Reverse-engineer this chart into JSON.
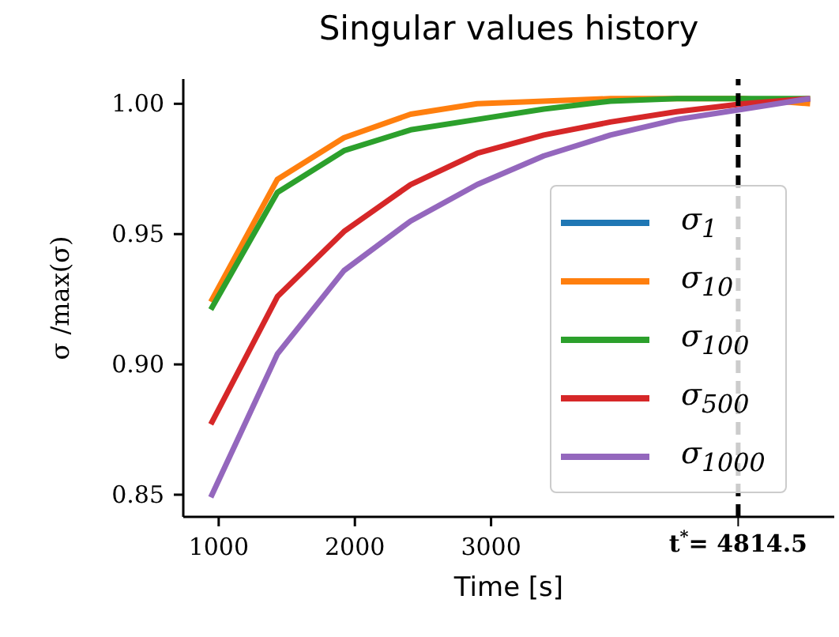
{
  "chart_data": {
    "type": "line",
    "title": "Singular values history",
    "xlabel": "Time [s]",
    "ylabel": "σ /max(σ)",
    "x": [
      942,
      1431,
      1920,
      2409,
      2898,
      3387,
      3876,
      4365,
      4854,
      5343
    ],
    "series": [
      {
        "name": "σ$_{1}$",
        "color": "#1f77b4",
        "values": [
          null,
          null,
          null,
          null,
          null,
          null,
          null,
          null,
          null,
          null
        ]
      },
      {
        "name": "σ$_{10}$",
        "color": "#ff7f0e",
        "values": [
          0.924,
          0.971,
          0.987,
          0.996,
          1.0,
          1.001,
          1.002,
          1.002,
          1.002,
          1.0
        ]
      },
      {
        "name": "σ$_{100}$",
        "color": "#2ca02c",
        "values": [
          0.921,
          0.966,
          0.982,
          0.99,
          0.994,
          0.998,
          1.001,
          1.002,
          1.002,
          1.002
        ]
      },
      {
        "name": "σ$_{500}$",
        "color": "#d62728",
        "values": [
          0.877,
          0.926,
          0.951,
          0.969,
          0.981,
          0.988,
          0.993,
          0.997,
          1.0,
          1.002
        ]
      },
      {
        "name": "σ$_{1000}$",
        "color": "#9467bd",
        "values": [
          0.849,
          0.904,
          0.936,
          0.955,
          0.969,
          0.98,
          0.988,
          0.994,
          0.998,
          1.002
        ]
      }
    ],
    "xlim": [
      740,
      5520
    ],
    "ylim": [
      0.8415,
      1.0095
    ],
    "xticks": [
      1000,
      2000,
      3000
    ],
    "yticks": [
      {
        "value": 0.85,
        "label": "0.85"
      },
      {
        "value": 0.9,
        "label": "0.90"
      },
      {
        "value": 0.95,
        "label": "0.95"
      },
      {
        "value": 1.0,
        "label": "1.00"
      }
    ],
    "ref_lines": [
      {
        "axis": "x",
        "value": 4814.5,
        "label": "t$^{*}$= 4814.5",
        "color": "#000000",
        "line_style": "dashed"
      }
    ],
    "grid": false,
    "legend": "bottom right",
    "marker": "none",
    "line_style": "solid"
  }
}
